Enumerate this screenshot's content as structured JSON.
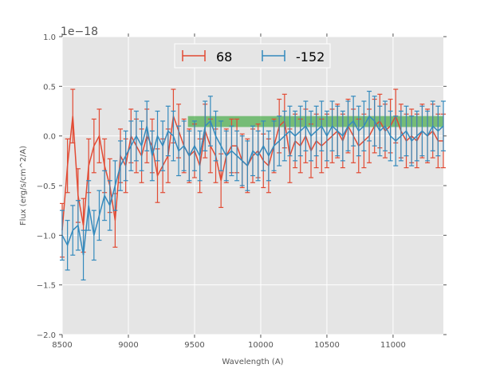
{
  "chart_data": {
    "type": "line",
    "title": "",
    "xlabel": "Wavelength (A)",
    "ylabel": "Flux (erg/s/cm^2/A)",
    "offset_text": "1e−18",
    "xlim": [
      8500,
      11380
    ],
    "ylim": [
      -2.0,
      1.0
    ],
    "grid": true,
    "legend_placement": "top-center",
    "xticks": [
      8500,
      9000,
      9500,
      10000,
      10500,
      11000
    ],
    "xtick_labels": [
      "8500",
      "9000",
      "9500",
      "10000",
      "10500",
      "11000"
    ],
    "yticks": [
      1.0,
      0.5,
      0.0,
      -0.5,
      -1.0,
      -1.5,
      -2.0
    ],
    "ytick_labels": [
      "1.0",
      "0.5",
      "0.0",
      "−0.5",
      "−1.0",
      "−1.5",
      "−2.0"
    ],
    "band": {
      "x": [
        9450,
        11380
      ],
      "y": [
        0.09,
        0.2
      ],
      "color": "#2ca02c"
    },
    "series": [
      {
        "name": "68",
        "color": "#E24A33",
        "x_start": 8500,
        "x_step": 40,
        "yerr": 0.27,
        "values": [
          -0.95,
          -0.3,
          0.2,
          -0.6,
          -0.9,
          -0.3,
          -0.1,
          0.0,
          -0.3,
          -0.5,
          -0.85,
          -0.2,
          -0.3,
          0.0,
          -0.1,
          -0.2,
          0.0,
          -0.1,
          -0.4,
          -0.3,
          -0.2,
          0.2,
          0.05,
          -0.1,
          -0.2,
          -0.15,
          -0.3,
          0.05,
          -0.1,
          -0.2,
          -0.45,
          -0.2,
          -0.1,
          -0.1,
          -0.25,
          -0.3,
          -0.2,
          -0.15,
          -0.25,
          -0.3,
          -0.1,
          0.1,
          0.15,
          -0.2,
          -0.05,
          -0.1,
          0.0,
          -0.15,
          -0.05,
          -0.1,
          -0.05,
          0.0,
          0.05,
          -0.05,
          0.1,
          0.0,
          -0.1,
          -0.05,
          0.0,
          0.1,
          0.15,
          0.05,
          0.1,
          0.2,
          0.05,
          -0.05,
          0.0,
          -0.05,
          0.05,
          0.0,
          0.05,
          -0.05,
          -0.05
        ]
      },
      {
        "name": "-152",
        "color": "#348ABD",
        "x_start": 8500,
        "x_step": 40,
        "yerr": 0.25,
        "values": [
          -1.0,
          -1.1,
          -0.95,
          -0.9,
          -1.2,
          -0.7,
          -1.0,
          -0.8,
          -0.6,
          -0.7,
          -0.5,
          -0.3,
          -0.2,
          -0.1,
          0.0,
          -0.1,
          0.1,
          -0.2,
          0.0,
          -0.1,
          0.05,
          0.0,
          -0.15,
          -0.1,
          -0.2,
          -0.1,
          -0.2,
          0.1,
          0.15,
          0.0,
          -0.1,
          -0.2,
          -0.15,
          -0.2,
          -0.25,
          -0.3,
          -0.15,
          -0.2,
          -0.1,
          -0.2,
          -0.1,
          -0.05,
          0.0,
          0.05,
          0.0,
          0.05,
          0.1,
          0.0,
          0.05,
          0.1,
          0.0,
          0.1,
          0.05,
          0.0,
          0.1,
          0.15,
          0.05,
          0.1,
          0.2,
          0.15,
          0.05,
          0.1,
          0.0,
          -0.05,
          0.0,
          0.05,
          -0.05,
          0.0,
          0.05,
          0.0,
          0.1,
          0.05,
          0.1
        ]
      }
    ]
  }
}
